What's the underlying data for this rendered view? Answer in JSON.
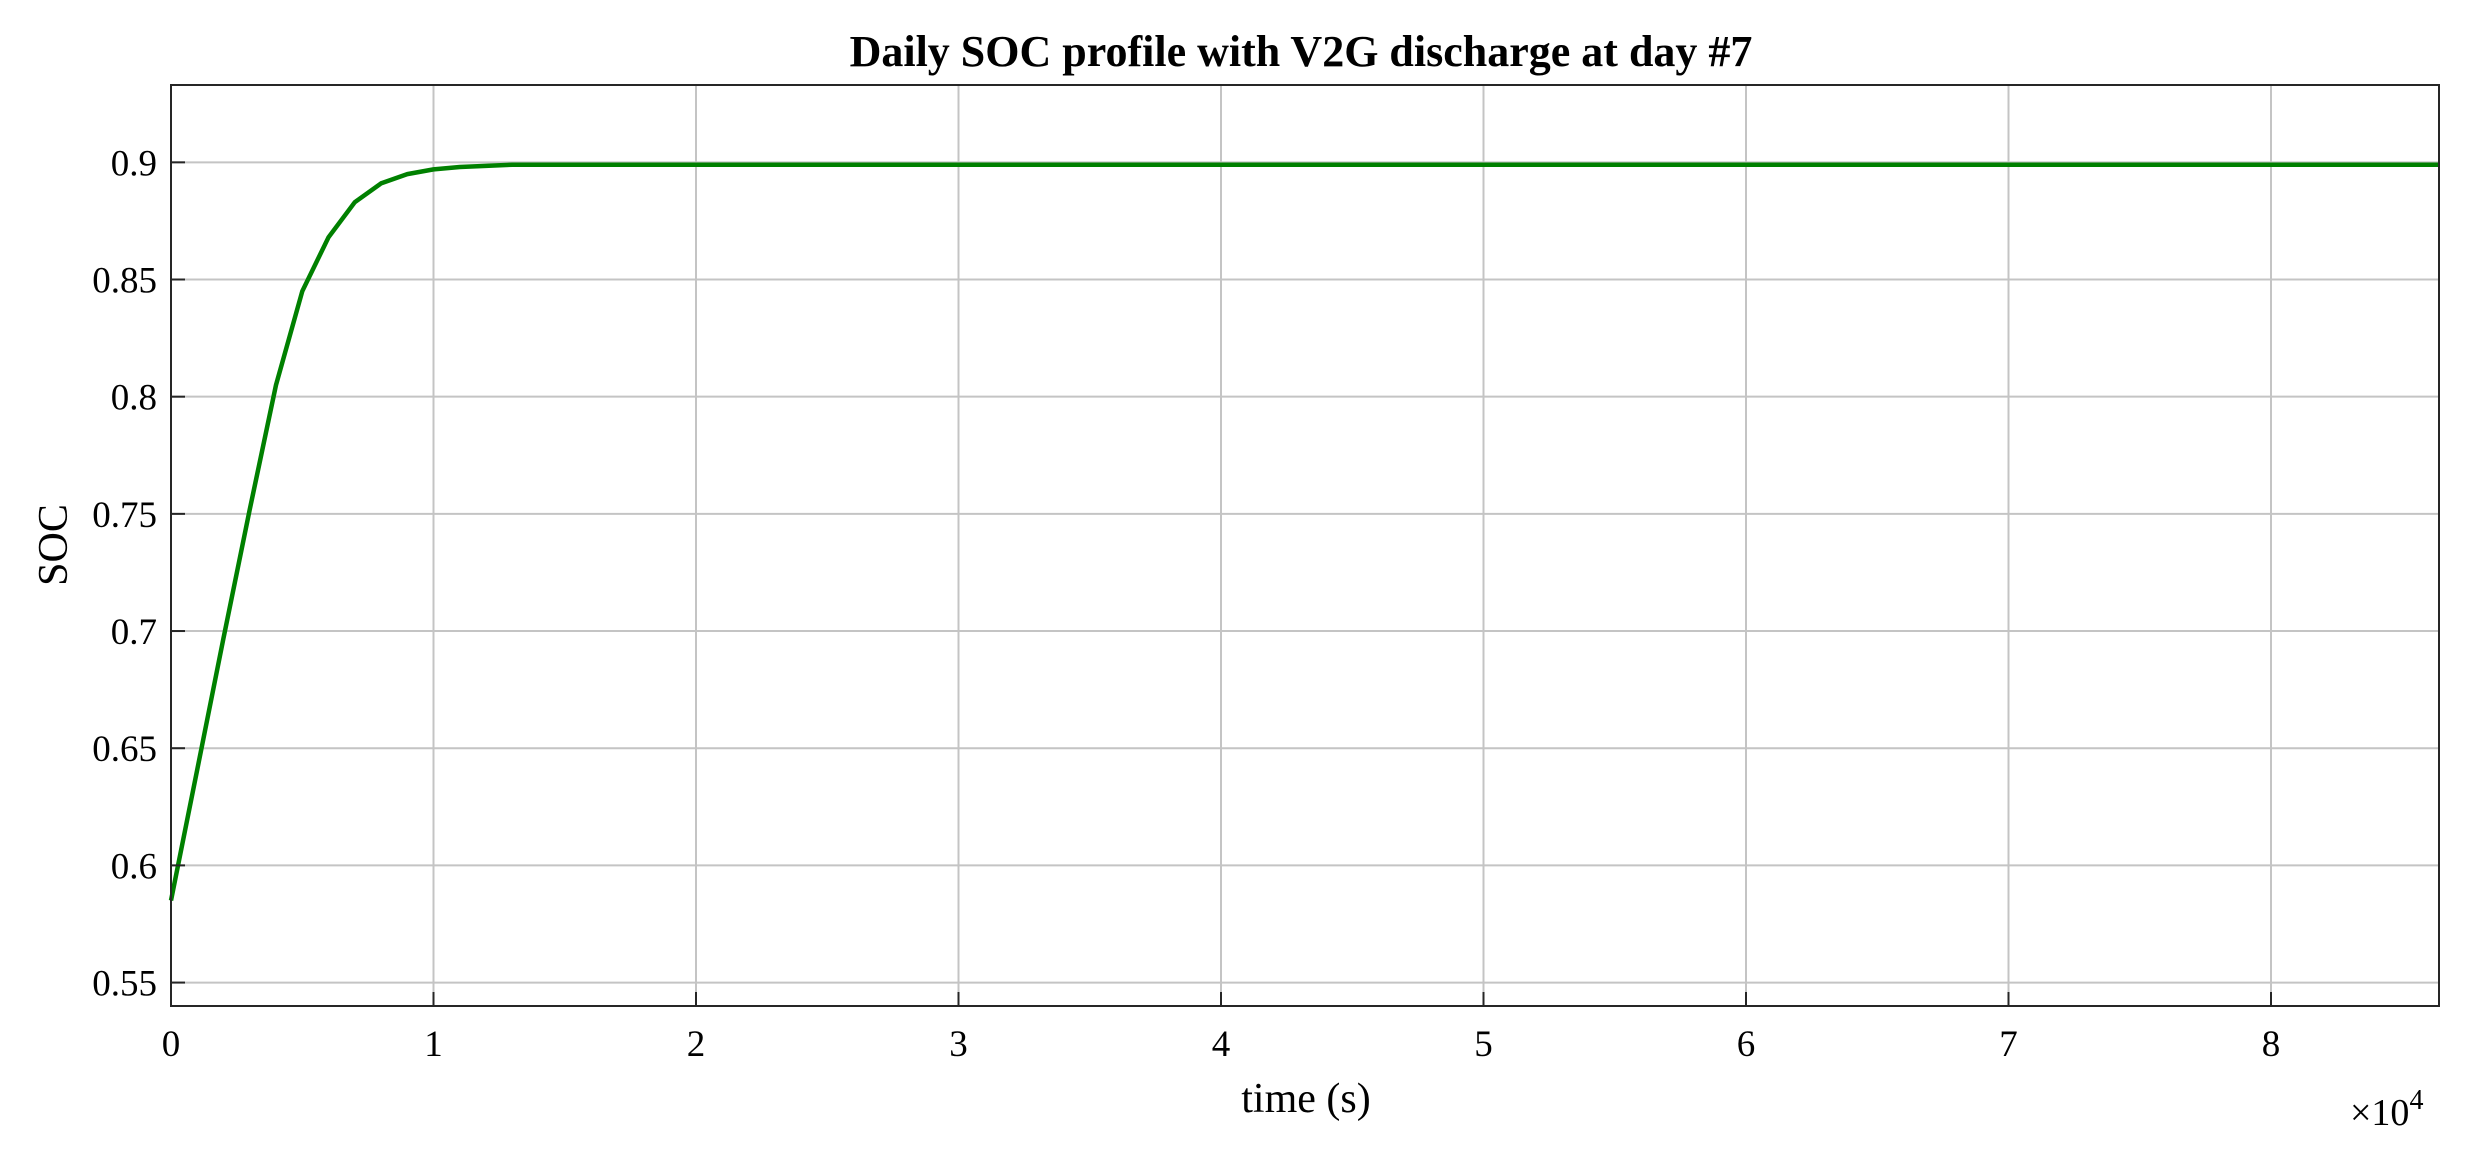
{
  "chart_data": {
    "type": "line",
    "title": "Daily SOC profile with V2G discharge at day #7",
    "xlabel": "time (s)",
    "ylabel": "SOC",
    "x_exponent_label": "×10",
    "x_exponent_power": "4",
    "xlim": [
      0,
      86400
    ],
    "ylim": [
      0.54,
      0.933
    ],
    "x_ticks": [
      0,
      10000,
      20000,
      30000,
      40000,
      50000,
      60000,
      70000,
      80000
    ],
    "x_tick_labels": [
      "0",
      "1",
      "2",
      "3",
      "4",
      "5",
      "6",
      "7",
      "8"
    ],
    "y_ticks": [
      0.55,
      0.6,
      0.65,
      0.7,
      0.75,
      0.8,
      0.85,
      0.9
    ],
    "y_tick_labels": [
      "0.55",
      "0.6",
      "0.65",
      "0.7",
      "0.75",
      "0.8",
      "0.85",
      "0.9"
    ],
    "grid": true,
    "series": [
      {
        "color": "#008000",
        "x": [
          0,
          1000,
          2000,
          3000,
          4000,
          5000,
          6000,
          7000,
          8000,
          9000,
          10000,
          11000,
          12000,
          13000,
          14000,
          20000,
          40000,
          60000,
          80000,
          86400
        ],
        "y": [
          0.585,
          0.641,
          0.697,
          0.752,
          0.805,
          0.845,
          0.868,
          0.883,
          0.891,
          0.895,
          0.897,
          0.898,
          0.8985,
          0.899,
          0.899,
          0.899,
          0.899,
          0.899,
          0.899,
          0.899
        ]
      }
    ]
  }
}
